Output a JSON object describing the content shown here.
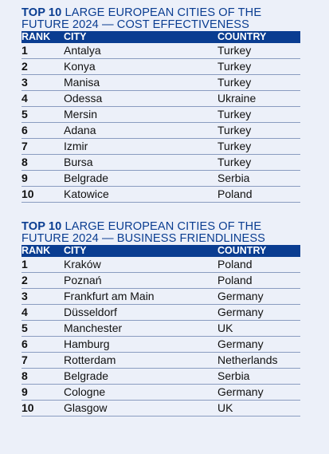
{
  "tables": [
    {
      "title_strong": "TOP 10",
      "title_rest": " LARGE EUROPEAN CITIES OF THE FUTURE  2024 — COST EFFECTIVENESS",
      "headers": {
        "rank": "RANK",
        "city": "CITY",
        "country": "COUNTRY"
      },
      "rows": [
        {
          "rank": "1",
          "city": "Antalya",
          "country": "Turkey"
        },
        {
          "rank": "2",
          "city": "Konya",
          "country": "Turkey"
        },
        {
          "rank": "3",
          "city": "Manisa",
          "country": "Turkey"
        },
        {
          "rank": "4",
          "city": "Odessa",
          "country": "Ukraine"
        },
        {
          "rank": "5",
          "city": "Mersin",
          "country": "Turkey"
        },
        {
          "rank": "6",
          "city": "Adana",
          "country": "Turkey"
        },
        {
          "rank": "7",
          "city": "Izmir",
          "country": "Turkey"
        },
        {
          "rank": "8",
          "city": "Bursa",
          "country": "Turkey"
        },
        {
          "rank": "9",
          "city": "Belgrade",
          "country": "Serbia"
        },
        {
          "rank": "10",
          "city": "Katowice",
          "country": "Poland"
        }
      ]
    },
    {
      "title_strong": "TOP 10",
      "title_rest": " LARGE EUROPEAN CITIES OF THE FUTURE  2024 — BUSINESS FRIENDLINESS",
      "headers": {
        "rank": "RANK",
        "city": "CITY",
        "country": "COUNTRY"
      },
      "rows": [
        {
          "rank": "1",
          "city": "Kraków",
          "country": "Poland"
        },
        {
          "rank": "2",
          "city": "Poznań",
          "country": "Poland"
        },
        {
          "rank": "3",
          "city": "Frankfurt am Main",
          "country": "Germany"
        },
        {
          "rank": "4",
          "city": "Düsseldorf",
          "country": "Germany"
        },
        {
          "rank": "5",
          "city": "Manchester",
          "country": "UK"
        },
        {
          "rank": "6",
          "city": "Hamburg",
          "country": "Germany"
        },
        {
          "rank": "7",
          "city": "Rotterdam",
          "country": "Netherlands"
        },
        {
          "rank": "8",
          "city": "Belgrade",
          "country": "Serbia"
        },
        {
          "rank": "9",
          "city": "Cologne",
          "country": "Germany"
        },
        {
          "rank": "10",
          "city": "Glasgow",
          "country": "UK"
        }
      ]
    }
  ],
  "colors": {
    "accent": "#0a3d91",
    "background": "#ecf0f9"
  }
}
